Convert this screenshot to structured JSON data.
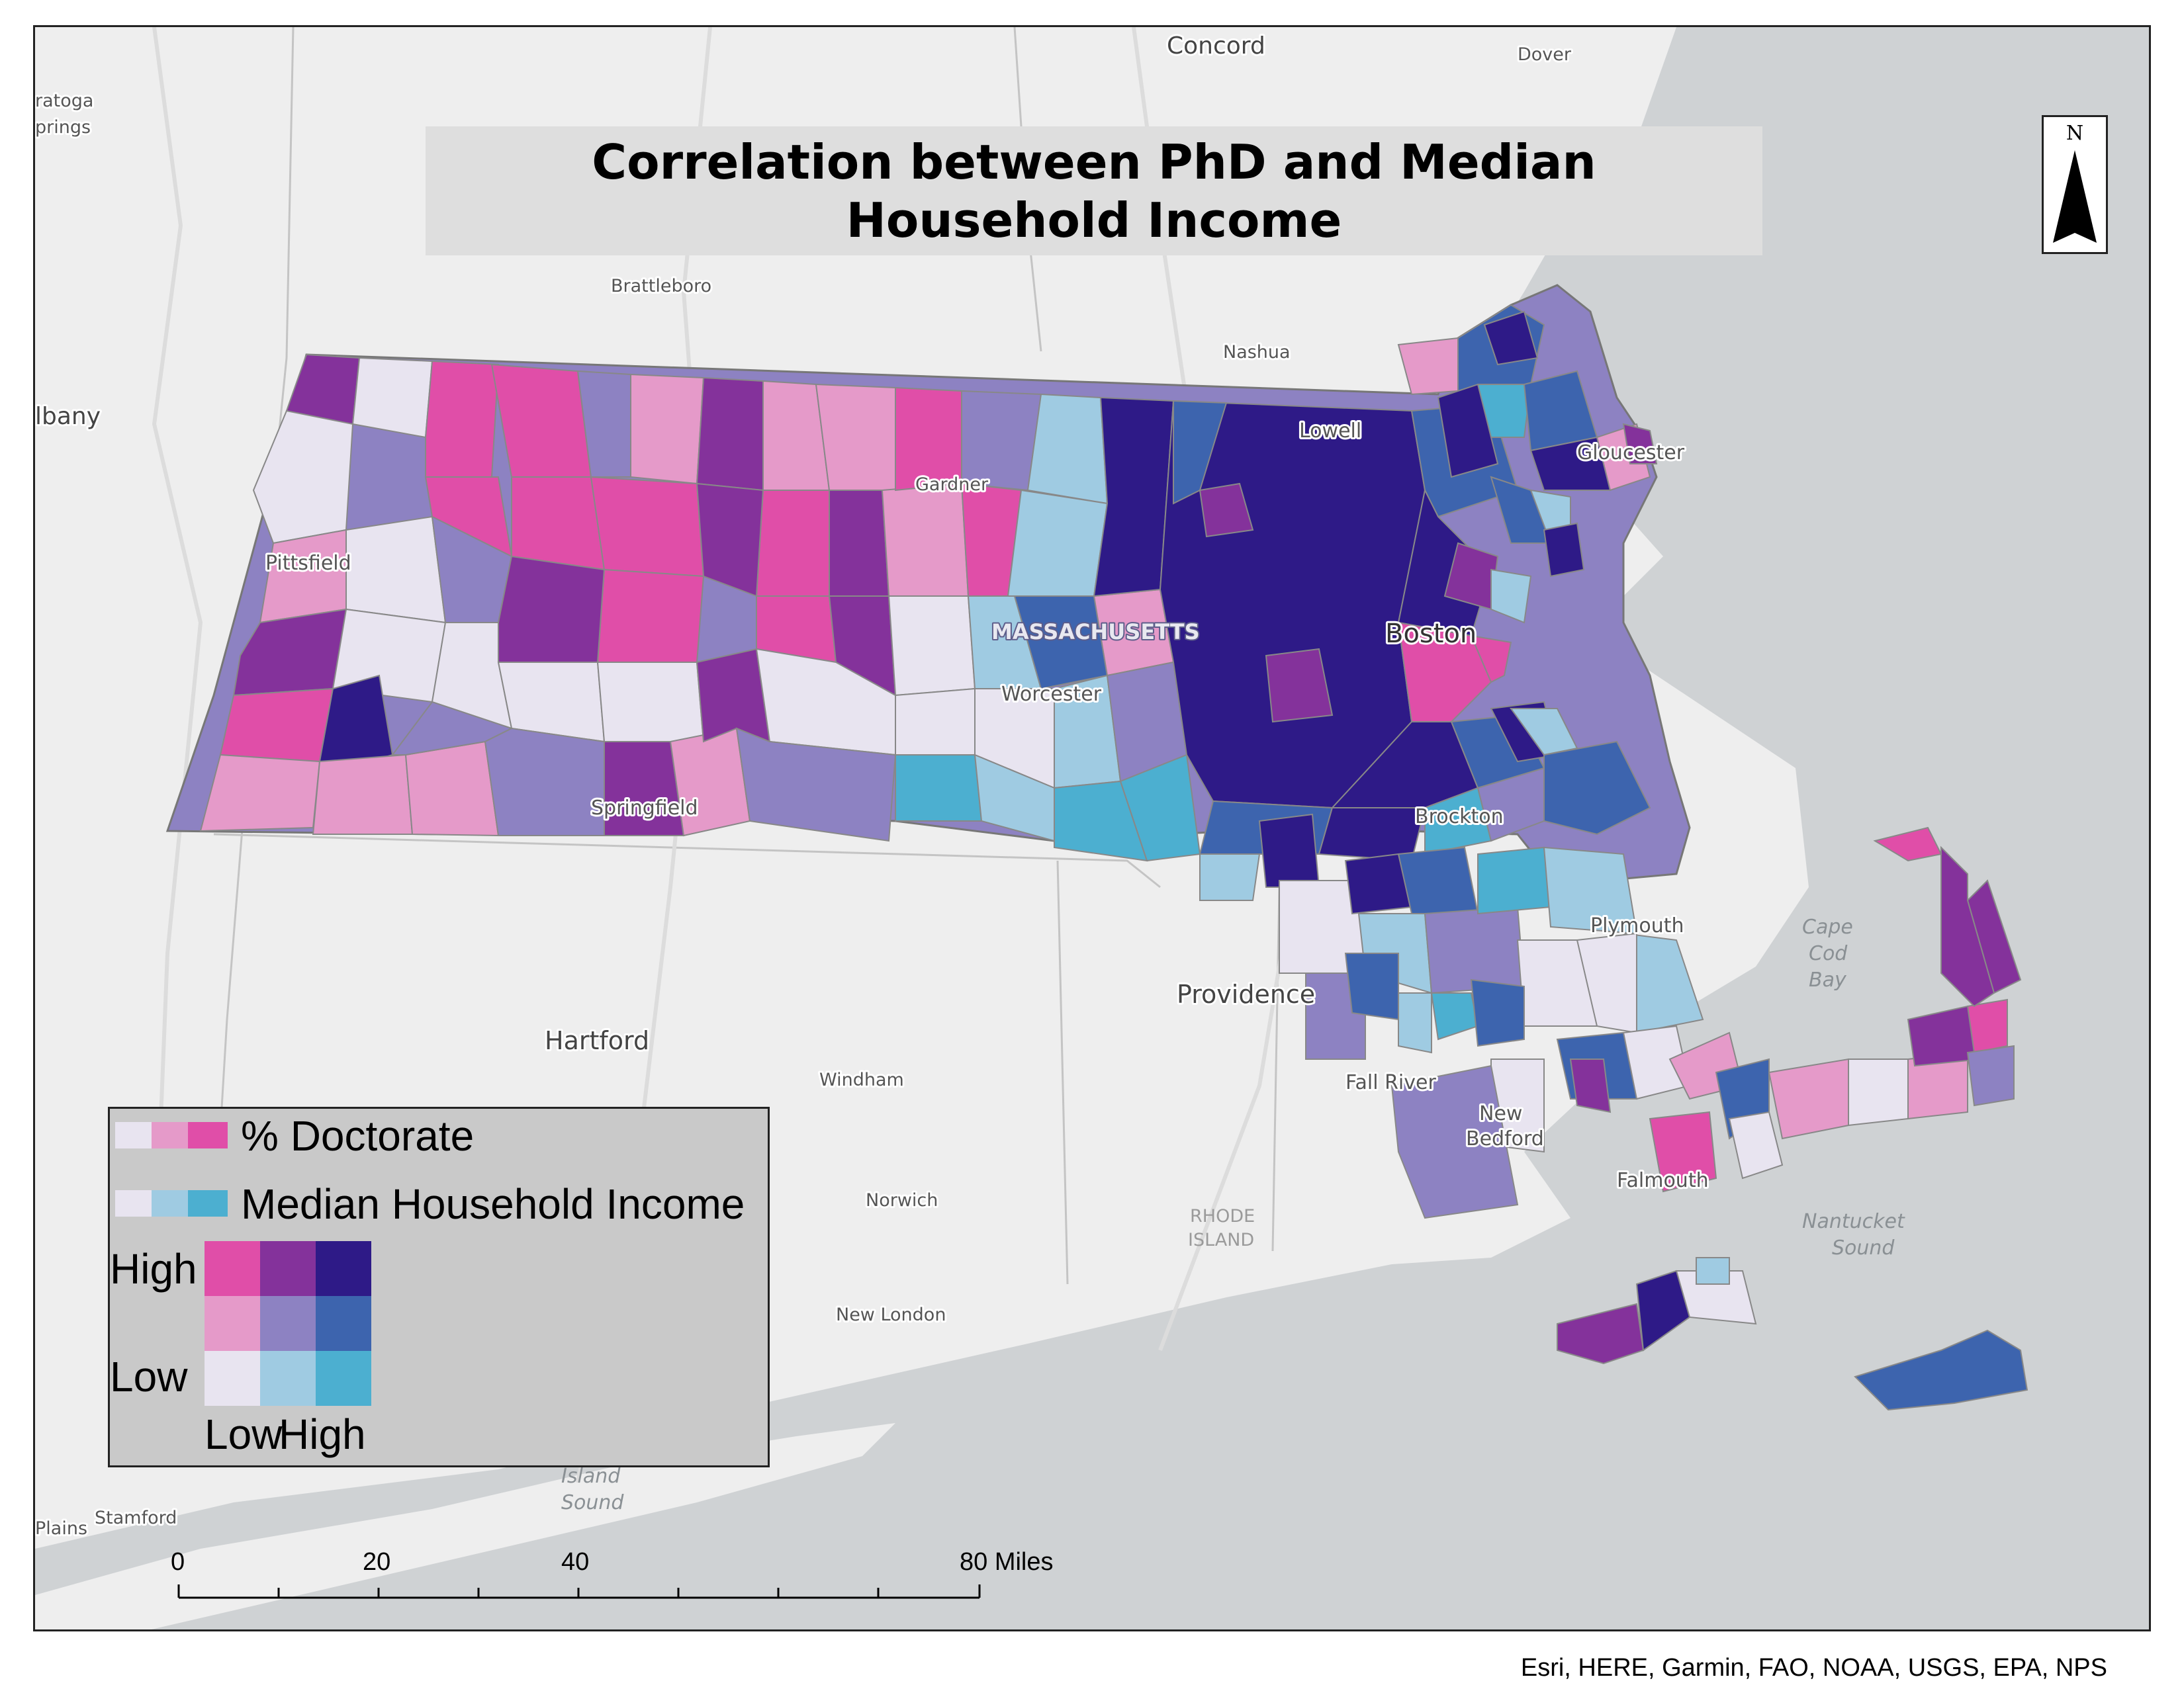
{
  "title": "Correlation between PhD and Median Household Income",
  "north_arrow": "N",
  "attribution": "Esri, HERE, Garmin, FAO, NOAA, USGS, EPA, NPS",
  "scale": {
    "ticks": [
      "0",
      "20",
      "40"
    ],
    "end_label": "80 Miles"
  },
  "legend": {
    "row1_label": "% Doctorate",
    "row2_label": "Median Household Income",
    "high_label": "High",
    "low_label": "Low",
    "x_low_label": "Low",
    "x_high_label": "High",
    "doctorate_ramp": [
      "#e8e4f0",
      "#e59ac9",
      "#e04ea8"
    ],
    "income_ramp": [
      "#e8e4f0",
      "#9fcbe2",
      "#4cafd0"
    ],
    "bivariate_grid": [
      [
        "#e04ea8",
        "#84329b",
        "#2e1a87"
      ],
      [
        "#e59ac9",
        "#8d82c2",
        "#3d64ae"
      ],
      [
        "#e8e4f0",
        "#9fcbe2",
        "#4cafd0"
      ]
    ]
  },
  "place_labels": {
    "concord": "Concord",
    "dover": "Dover",
    "saratoga": "ratoga",
    "springs": "prings",
    "albany": "lbany",
    "brattleboro": "Brattleboro",
    "nashua": "Nashua",
    "lowell": "Lowell",
    "gloucester": "Gloucester",
    "gardner": "Gardner",
    "pittsfield": "Pittsfield",
    "massachusetts": "MASSACHUSETTS",
    "boston": "Boston",
    "worcester": "Worcester",
    "springfield": "Springfield",
    "brockton": "Brockton",
    "plymouth": "Plymouth",
    "cape_cod_bay_1": "Cape",
    "cape_cod_bay_2": "Cod",
    "cape_cod_bay_3": "Bay",
    "providence": "Providence",
    "hartford": "Hartford",
    "windham": "Windham",
    "fall_river": "Fall River",
    "new_bedford_1": "New",
    "new_bedford_2": "Bedford",
    "falmouth": "Falmouth",
    "norwich": "Norwich",
    "rhode_island_1": "RHODE",
    "rhode_island_2": "ISLAND",
    "nantucket_sound_1": "Nantucket",
    "nantucket_sound_2": "Sound",
    "new_london": "New London",
    "long_island_sound_1": "Island",
    "long_island_sound_2": "Sound",
    "stamford": "Stamford",
    "plains": "Plains"
  }
}
